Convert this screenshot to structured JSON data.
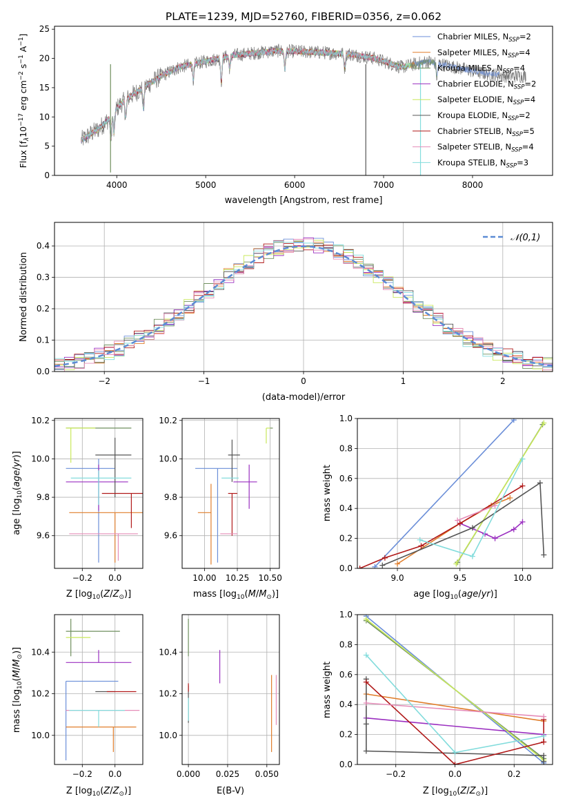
{
  "colors": {
    "series": [
      "#6a8ed8",
      "#e07d2a",
      "#6f8f5e",
      "#9a2ec0",
      "#c8e85a",
      "#555555",
      "#b01818",
      "#e58cb8",
      "#82dcdc"
    ],
    "spectrum": "#777777",
    "grid": "#b0b0b0"
  },
  "chart_data": [
    {
      "type": "line",
      "id": "spectrum",
      "title": "PLATE=1239, MJD=52760, FIBERID=0356, z=0.062",
      "xlabel": "wavelength [Angstrom, rest frame]",
      "ylabel": "Flux [f$_\\lambda$10$^{-17}$ erg cm$^{-2}$ s$^{-1}$ A$^{-1}$]",
      "ylabel_parts": {
        "a": "Flux [f",
        "b": "λ",
        "c": "10",
        "d": "−17",
        "e": " erg cm",
        "f": "−2",
        "g": " s",
        "h": "−1",
        "i": " A",
        "j": "−1",
        "k": "]"
      },
      "xlim": [
        3300,
        8900
      ],
      "ylim": [
        0,
        25.5
      ],
      "xticks": [
        4000,
        5000,
        6000,
        7000,
        8000
      ],
      "yticks": [
        0,
        5,
        10,
        15,
        20,
        25
      ],
      "grid": false,
      "legend_position": "upper-right",
      "legend": [
        {
          "pre": "Chabrier MILES, N",
          "sub": "SSP",
          "post": "=2"
        },
        {
          "pre": "Salpeter MILES, N",
          "sub": "SSP",
          "post": "=4"
        },
        {
          "pre": "Kroupa MILES, N",
          "sub": "SSP",
          "post": "=4"
        },
        {
          "pre": "Chabrier ELODIE, N",
          "sub": "SSP",
          "post": "=2"
        },
        {
          "pre": "Salpeter ELODIE, N",
          "sub": "SSP",
          "post": "=4"
        },
        {
          "pre": "Kroupa ELODIE, N",
          "sub": "SSP",
          "post": "=2"
        },
        {
          "pre": "Chabrier STELIB, N",
          "sub": "SSP",
          "post": "=5"
        },
        {
          "pre": "Salpeter STELIB, N",
          "sub": "SSP",
          "post": "=4"
        },
        {
          "pre": "Kroupa STELIB, N",
          "sub": "SSP",
          "post": "=3"
        }
      ],
      "continuum": [
        [
          3600,
          6
        ],
        [
          3700,
          7
        ],
        [
          3800,
          8
        ],
        [
          3900,
          9.5
        ],
        [
          4000,
          11.5
        ],
        [
          4100,
          13
        ],
        [
          4300,
          15
        ],
        [
          4500,
          17
        ],
        [
          4700,
          18.5
        ],
        [
          5000,
          19.5
        ],
        [
          5300,
          20.5
        ],
        [
          5600,
          21
        ],
        [
          5800,
          21.3
        ],
        [
          6000,
          21.2
        ],
        [
          6300,
          21
        ],
        [
          6600,
          20.8
        ],
        [
          6900,
          20
        ],
        [
          7200,
          18.5
        ],
        [
          7500,
          19.5
        ],
        [
          7800,
          18.5
        ],
        [
          8100,
          17.5
        ],
        [
          8400,
          17
        ],
        [
          8700,
          17
        ]
      ],
      "absorption": [
        [
          3934,
          4
        ],
        [
          3969,
          3.5
        ],
        [
          4101,
          3
        ],
        [
          4300,
          3.5
        ],
        [
          4861,
          2.5
        ],
        [
          5175,
          4
        ],
        [
          5270,
          2
        ],
        [
          5890,
          3
        ],
        [
          6563,
          2.5
        ],
        [
          7600,
          2.5
        ]
      ],
      "gaps": [
        [
          3930,
          0.5
        ],
        [
          6800,
          0
        ],
        [
          7415,
          0
        ]
      ],
      "noise_amplitude": 2.4
    },
    {
      "type": "histogram",
      "id": "residuals",
      "xlabel": "(data-model)/error",
      "ylabel": "Normed distribution",
      "xlim": [
        -2.5,
        2.5
      ],
      "ylim": [
        0,
        0.475
      ],
      "xticks": [
        -2,
        -1,
        0,
        1,
        2
      ],
      "yticks": [
        0.0,
        0.1,
        0.2,
        0.3,
        0.4
      ],
      "grid": true,
      "bin_width": 0.1,
      "legend_label": "𝒩(0,1)",
      "reference": {
        "mean": 0,
        "sigma": 1
      }
    },
    {
      "type": "scatter",
      "id": "age-vs-Z",
      "xlabel": "Z [log10(Z/Z⊙)]",
      "ylabel": "age [log10(age/yr)]",
      "xlim": [
        -0.37,
        0.17
      ],
      "ylim": [
        9.43,
        10.21
      ],
      "xticks": [
        -0.2,
        0.0
      ],
      "yticks": [
        9.6,
        9.8,
        10.0,
        10.2
      ],
      "grid": true,
      "points": [
        {
          "x": -0.1,
          "y": 9.95,
          "xerr": [
            0.2,
            0.1
          ],
          "yerr": [
            0.49,
            0.05
          ]
        },
        {
          "x": 0.0,
          "y": 9.72,
          "xerr": [
            0.28,
            0.25
          ],
          "yerr": [
            0.26,
            0.0
          ]
        },
        {
          "x": -0.05,
          "y": 10.16,
          "xerr": [
            0.25,
            0.15
          ],
          "yerr": [
            0.0,
            0.0
          ]
        },
        {
          "x": -0.1,
          "y": 9.88,
          "xerr": [
            0.2,
            0.18
          ],
          "yerr": [
            0.15,
            0.09
          ]
        },
        {
          "x": -0.27,
          "y": 10.16,
          "xerr": [
            0.03,
            0.15
          ],
          "yerr": [
            0.18,
            0.0
          ]
        },
        {
          "x": 0.0,
          "y": 10.02,
          "xerr": [
            0.12,
            0.1
          ],
          "yerr": [
            0.22,
            0.09
          ]
        },
        {
          "x": 0.1,
          "y": 9.82,
          "xerr": [
            0.18,
            0.12
          ],
          "yerr": [
            0.18,
            0.0
          ]
        },
        {
          "x": 0.02,
          "y": 9.61,
          "xerr": [
            0.3,
            0.12
          ],
          "yerr": [
            0.14,
            0.0
          ]
        },
        {
          "x": -0.1,
          "y": 9.9,
          "xerr": [
            0.17,
            0.2
          ],
          "yerr": [
            0.14,
            0.04
          ]
        }
      ]
    },
    {
      "type": "scatter",
      "id": "age-vs-mass",
      "xlabel": "mass [log10(M/M⊙)]",
      "ylabel": "",
      "xlim": [
        9.83,
        10.57
      ],
      "ylim": [
        9.43,
        10.21
      ],
      "xticks": [
        10.0,
        10.25,
        10.5
      ],
      "yticks": [
        9.6,
        9.8,
        10.0,
        10.2
      ],
      "grid": true,
      "points": [
        {
          "x": 10.1,
          "y": 9.95,
          "xerr": [
            0.17,
            0.15
          ],
          "yerr": [
            0.49,
            0.0
          ]
        },
        {
          "x": 10.05,
          "y": 9.72,
          "xerr": [
            0.1,
            0.0
          ],
          "yerr": [
            0.27,
            0.15
          ]
        },
        {
          "x": 10.5,
          "y": 10.16,
          "xerr": [
            0.0,
            0.02
          ],
          "yerr": [
            0.0,
            0.0
          ]
        },
        {
          "x": 10.34,
          "y": 9.88,
          "xerr": [
            0.12,
            0.06
          ],
          "yerr": [
            0.14,
            0.09
          ]
        },
        {
          "x": 10.47,
          "y": 10.16,
          "xerr": [
            0.0,
            0.03
          ],
          "yerr": [
            0.08,
            0.0
          ]
        },
        {
          "x": 10.21,
          "y": 10.02,
          "xerr": [
            0.03,
            0.06
          ],
          "yerr": [
            0.14,
            0.08
          ]
        },
        {
          "x": 10.21,
          "y": 9.82,
          "xerr": [
            0.03,
            0.04
          ],
          "yerr": [
            0.22,
            0.0
          ]
        },
        {
          "x": 10.12,
          "y": 9.61,
          "xerr": [
            0.0,
            0.13
          ],
          "yerr": [
            0.0,
            0.0
          ]
        },
        {
          "x": 10.13,
          "y": 9.9,
          "xerr": [
            0.0,
            0.13
          ],
          "yerr": [
            0.0,
            0.0
          ]
        }
      ]
    },
    {
      "type": "line",
      "id": "weight-vs-age",
      "xlabel": "age [log10(age/yr)]",
      "ylabel": "mass weight",
      "xlim": [
        8.68,
        10.24
      ],
      "ylim": [
        0,
        1.0
      ],
      "xticks": [
        9.0,
        9.5,
        10.0
      ],
      "yticks": [
        0.0,
        0.2,
        0.4,
        0.6,
        0.8,
        1.0
      ],
      "grid": true,
      "series": [
        {
          "x": [
            8.82,
            9.93
          ],
          "y": [
            0.01,
            0.99
          ]
        },
        {
          "x": [
            9.0,
            9.5,
            9.75,
            9.9
          ],
          "y": [
            0.03,
            0.3,
            0.42,
            0.47
          ]
        },
        {
          "x": [
            9.48,
            10.16
          ],
          "y": [
            0.04,
            0.96
          ]
        },
        {
          "x": [
            9.5,
            9.7,
            9.78,
            9.93,
            10.0
          ],
          "y": [
            0.3,
            0.23,
            0.2,
            0.26,
            0.31
          ]
        },
        {
          "x": [
            9.47,
            10.17
          ],
          "y": [
            0.03,
            0.97
          ]
        },
        {
          "x": [
            8.88,
            9.6,
            10.14,
            10.17
          ],
          "y": [
            0.02,
            0.27,
            0.57,
            0.09
          ]
        },
        {
          "x": [
            8.7,
            8.9,
            9.19,
            9.5,
            10.0
          ],
          "y": [
            0.0,
            0.07,
            0.15,
            0.3,
            0.55
          ]
        },
        {
          "x": [
            9.48,
            9.78
          ],
          "y": [
            0.32,
            0.42
          ]
        },
        {
          "x": [
            9.18,
            9.6,
            10.0
          ],
          "y": [
            0.19,
            0.08,
            0.73
          ]
        }
      ]
    },
    {
      "type": "scatter",
      "id": "mass-vs-Z",
      "xlabel": "Z [log10(Z/Z⊙)]",
      "ylabel": "mass [log10(M/M⊙)]",
      "xlim": [
        -0.37,
        0.17
      ],
      "ylim": [
        9.86,
        10.58
      ],
      "xticks": [
        -0.2,
        0.0
      ],
      "yticks": [
        10.0,
        10.2,
        10.4
      ],
      "grid": true,
      "points": [
        {
          "x": -0.3,
          "y": 10.26,
          "xerr": [
            0.0,
            0.32
          ],
          "yerr": [
            0.38,
            0.0
          ]
        },
        {
          "x": -0.01,
          "y": 10.04,
          "xerr": [
            0.29,
            0.14
          ],
          "yerr": [
            0.12,
            0.0
          ]
        },
        {
          "x": -0.27,
          "y": 10.5,
          "xerr": [
            0.03,
            0.3
          ],
          "yerr": [
            0.12,
            0.06
          ]
        },
        {
          "x": -0.1,
          "y": 10.35,
          "xerr": [
            0.2,
            0.2
          ],
          "yerr": [
            0.0,
            0.06
          ]
        },
        {
          "x": -0.15,
          "y": 10.47,
          "xerr": [
            0.15,
            0.0
          ],
          "yerr": [
            0.0,
            0.0
          ]
        },
        {
          "x": -0.05,
          "y": 10.21,
          "xerr": [
            0.07,
            0.05
          ],
          "yerr": [
            0.0,
            0.0
          ]
        },
        {
          "x": 0.0,
          "y": 10.21,
          "xerr": [
            0.05,
            0.13
          ],
          "yerr": [
            0.0,
            0.0
          ]
        },
        {
          "x": 0.0,
          "y": 10.12,
          "xerr": [
            0.3,
            0.15
          ],
          "yerr": [
            0.0,
            0.0
          ]
        },
        {
          "x": -0.1,
          "y": 10.12,
          "xerr": [
            0.18,
            0.16
          ],
          "yerr": [
            0.08,
            0.0
          ]
        }
      ]
    },
    {
      "type": "scatter",
      "id": "mass-vs-EBV",
      "xlabel": "E(B-V)",
      "ylabel": "",
      "xlim": [
        -0.004,
        0.058
      ],
      "ylim": [
        9.86,
        10.58
      ],
      "xticks": [
        0.0,
        0.025,
        0.05
      ],
      "yticks": [
        10.0,
        10.2,
        10.4
      ],
      "grid": true,
      "points": [
        {
          "x": 0.0,
          "y": 10.26,
          "xerr": [
            0,
            0
          ],
          "yerr": [
            0.0,
            0.0
          ]
        },
        {
          "x": 0.053,
          "y": 10.04,
          "xerr": [
            0,
            0
          ],
          "yerr": [
            0.12,
            0.25
          ]
        },
        {
          "x": 0.0,
          "y": 10.5,
          "xerr": [
            0,
            0
          ],
          "yerr": [
            0.12,
            0.06
          ]
        },
        {
          "x": 0.02,
          "y": 10.35,
          "xerr": [
            0,
            0
          ],
          "yerr": [
            0.1,
            0.06
          ]
        },
        {
          "x": 0.0,
          "y": 10.47,
          "xerr": [
            0,
            0
          ],
          "yerr": [
            0.0,
            0.0
          ]
        },
        {
          "x": 0.0,
          "y": 10.21,
          "xerr": [
            0,
            0
          ],
          "yerr": [
            0.15,
            0.03
          ]
        },
        {
          "x": 0.0,
          "y": 10.21,
          "xerr": [
            0,
            0
          ],
          "yerr": [
            0.0,
            0.04
          ]
        },
        {
          "x": 0.056,
          "y": 10.12,
          "xerr": [
            0,
            0
          ],
          "yerr": [
            0.07,
            0.17
          ]
        },
        {
          "x": 0.0,
          "y": 10.12,
          "xerr": [
            0,
            0
          ],
          "yerr": [
            0.05,
            0.06
          ]
        }
      ]
    },
    {
      "type": "line",
      "id": "weight-vs-Z",
      "xlabel": "Z [log10(Z/Z⊙)]",
      "ylabel": "mass weight",
      "xlim": [
        -0.33,
        0.33
      ],
      "ylim": [
        0,
        1.0
      ],
      "xticks": [
        -0.2,
        0.0,
        0.2
      ],
      "yticks": [
        0.0,
        0.2,
        0.4,
        0.6,
        0.8,
        1.0
      ],
      "grid": true,
      "series": [
        {
          "x": [
            -0.3,
            0.3
          ],
          "y": [
            0.99,
            0.01
          ]
        },
        {
          "x": [
            -0.3,
            0.3
          ],
          "y": [
            0.47,
            0.29
          ]
        },
        {
          "x": [
            -0.3,
            0.3
          ],
          "y": [
            0.96,
            0.04
          ]
        },
        {
          "x": [
            -0.3,
            0.3
          ],
          "y": [
            0.31,
            0.2
          ]
        },
        {
          "x": [
            -0.3,
            0.3
          ],
          "y": [
            0.97,
            0.03
          ]
        },
        {
          "x": [
            -0.3,
            -0.3,
            -0.3,
            0.3,
            0.3
          ],
          "y": [
            0.57,
            0.27,
            0.09,
            0.06,
            0.02
          ]
        },
        {
          "x": [
            -0.3,
            0.0,
            0.3,
            0.3
          ],
          "y": [
            0.55,
            0.0,
            0.15,
            0.3
          ]
        },
        {
          "x": [
            -0.3,
            0.3
          ],
          "y": [
            0.41,
            0.32
          ]
        },
        {
          "x": [
            -0.3,
            0.0,
            0.3
          ],
          "y": [
            0.73,
            0.08,
            0.19
          ]
        }
      ]
    }
  ]
}
